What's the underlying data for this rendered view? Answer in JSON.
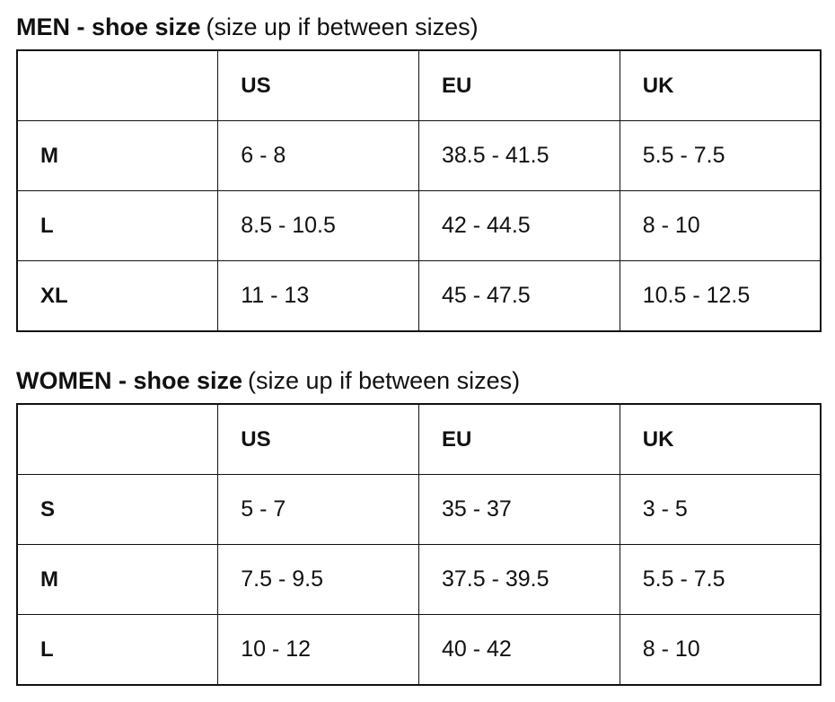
{
  "tables": [
    {
      "title_bold": "MEN - shoe size",
      "title_note": "(size up if between sizes)",
      "headers": [
        "",
        "US",
        "EU",
        "UK"
      ],
      "rows": [
        [
          "M",
          "6 - 8",
          "38.5 - 41.5",
          "5.5 - 7.5"
        ],
        [
          "L",
          "8.5 - 10.5",
          "42 - 44.5",
          "8 - 10"
        ],
        [
          "XL",
          "11 - 13",
          "45 - 47.5",
          "10.5 - 12.5"
        ]
      ]
    },
    {
      "title_bold": "WOMEN - shoe size",
      "title_note": "(size up if between sizes)",
      "headers": [
        "",
        "US",
        "EU",
        "UK"
      ],
      "rows": [
        [
          "S",
          "5 - 7",
          "35 - 37",
          "3 - 5"
        ],
        [
          "M",
          "7.5 - 9.5",
          "37.5 - 39.5",
          "5.5 - 7.5"
        ],
        [
          "L",
          "10 - 12",
          "40 - 42",
          "8 - 10"
        ]
      ]
    }
  ]
}
